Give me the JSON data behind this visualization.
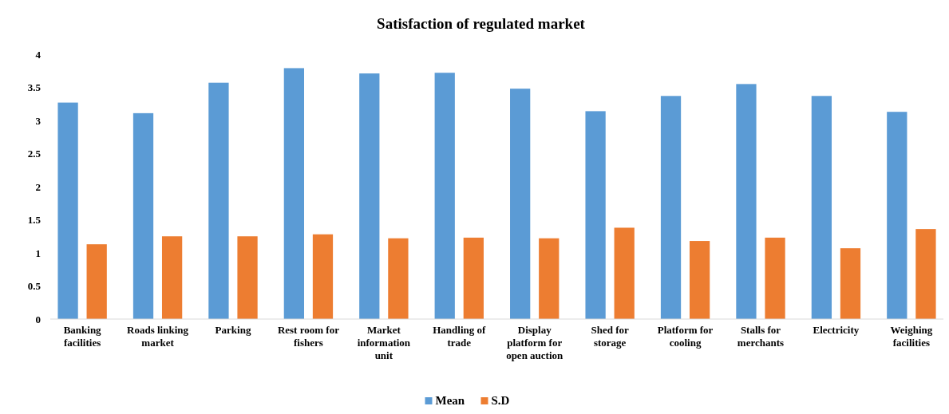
{
  "chart_data": {
    "type": "bar",
    "title": "Satisfaction of regulated market",
    "categories": [
      "Banking facilities",
      "Roads linking market",
      "Parking",
      "Rest room for fishers",
      "Market information unit",
      "Handling of trade",
      "Display platform for open auction",
      "Shed for storage",
      "Platform for cooling",
      "Stalls for merchants",
      "Electricity",
      "Weighing facilities"
    ],
    "series": [
      {
        "name": "Mean",
        "color": "#5b9bd5",
        "values": [
          3.27,
          3.11,
          3.57,
          3.79,
          3.71,
          3.72,
          3.48,
          3.14,
          3.37,
          3.55,
          3.37,
          3.13
        ]
      },
      {
        "name": "S.D",
        "color": "#ed7d31",
        "values": [
          1.13,
          1.25,
          1.25,
          1.28,
          1.22,
          1.23,
          1.22,
          1.38,
          1.18,
          1.23,
          1.07,
          1.36
        ]
      }
    ],
    "ylim": [
      0,
      4
    ],
    "yticks": [
      0,
      0.5,
      1,
      1.5,
      2,
      2.5,
      3,
      3.5,
      4
    ],
    "grid": false,
    "legend": "bottom"
  }
}
